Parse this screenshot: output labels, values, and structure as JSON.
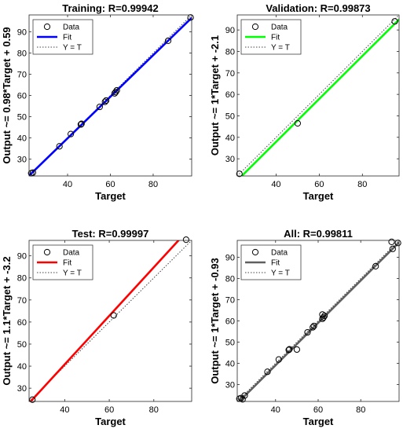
{
  "chart_data": [
    {
      "type": "scatter",
      "title": "Training: R=0.99942",
      "xlabel": "Target",
      "ylabel": "Output ~= 0.98*Target + 0.59",
      "xlim": [
        22,
        98
      ],
      "ylim": [
        22,
        98
      ],
      "xticks": [
        40,
        60,
        80
      ],
      "yticks": [
        30,
        40,
        50,
        60,
        70,
        80,
        90
      ],
      "fit_color": "#0000ff",
      "fit": {
        "slope": 0.98,
        "intercept": 0.59
      },
      "legend": [
        "Data",
        "Fit",
        "Y = T"
      ],
      "legend_position": "top-left",
      "series": [
        {
          "x": [
            23.0,
            23.8,
            36.2,
            41.5,
            46.2,
            46.5,
            55.0,
            57.5,
            58.0,
            62.0,
            62.5,
            63.0,
            87.0,
            97.5
          ],
          "y": [
            23.3,
            23.6,
            36.0,
            41.8,
            46.3,
            46.6,
            54.6,
            57.0,
            57.6,
            61.0,
            61.6,
            62.4,
            85.8,
            96.8
          ]
        }
      ]
    },
    {
      "type": "scatter",
      "title": "Validation: R=0.99873",
      "xlabel": "Target",
      "ylabel": "Output ~= 1*Target + -2.1",
      "xlim": [
        22,
        97
      ],
      "ylim": [
        22,
        97
      ],
      "xticks": [
        40,
        60,
        80
      ],
      "yticks": [
        30,
        40,
        50,
        60,
        70,
        80,
        90
      ],
      "fit_color": "#00ff00",
      "fit": {
        "slope": 1.0,
        "intercept": -2.1
      },
      "legend": [
        "Data",
        "Fit",
        "Y = T"
      ],
      "legend_position": "top-left",
      "series": [
        {
          "x": [
            23.0,
            50.0,
            95.0
          ],
          "y": [
            23.0,
            46.5,
            94.0
          ]
        }
      ]
    },
    {
      "type": "scatter",
      "title": "Test: R=0.99997",
      "xlabel": "Target",
      "ylabel": "Output ~= 1.1*Target + -3.2",
      "xlim": [
        24,
        97
      ],
      "ylim": [
        24,
        97
      ],
      "xticks": [
        40,
        60,
        80
      ],
      "yticks": [
        30,
        40,
        50,
        60,
        70,
        80,
        90
      ],
      "fit_color": "#ff0000",
      "fit": {
        "slope": 1.1,
        "intercept": -3.2
      },
      "legend": [
        "Data",
        "Fit",
        "Y = T"
      ],
      "legend_position": "top-left",
      "series": [
        {
          "x": [
            25.5,
            62.0,
            94.5
          ],
          "y": [
            24.8,
            63.0,
            97.3
          ]
        }
      ]
    },
    {
      "type": "scatter",
      "title": "All: R=0.99811",
      "xlabel": "Target",
      "ylabel": "Output ~= 1*Target + -0.93",
      "xlim": [
        22,
        98
      ],
      "ylim": [
        22,
        98
      ],
      "xticks": [
        40,
        60,
        80
      ],
      "yticks": [
        30,
        40,
        50,
        60,
        70,
        80,
        90
      ],
      "fit_color": "#606060",
      "fit": {
        "slope": 1.0,
        "intercept": -0.93
      },
      "legend": [
        "Data",
        "Fit",
        "Y = T"
      ],
      "legend_position": "top-left",
      "series": [
        {
          "x": [
            23.0,
            23.8,
            24.5,
            25.5,
            36.2,
            41.5,
            46.2,
            46.5,
            50.0,
            55.0,
            57.5,
            58.0,
            62.0,
            62.0,
            62.5,
            63.0,
            87.0,
            94.5,
            95.0,
            97.5
          ],
          "y": [
            23.3,
            23.6,
            23.0,
            24.8,
            36.0,
            41.8,
            46.3,
            46.6,
            46.5,
            54.6,
            57.0,
            57.6,
            61.0,
            63.0,
            61.6,
            62.4,
            85.8,
            97.3,
            94.0,
            96.8
          ]
        }
      ]
    }
  ]
}
